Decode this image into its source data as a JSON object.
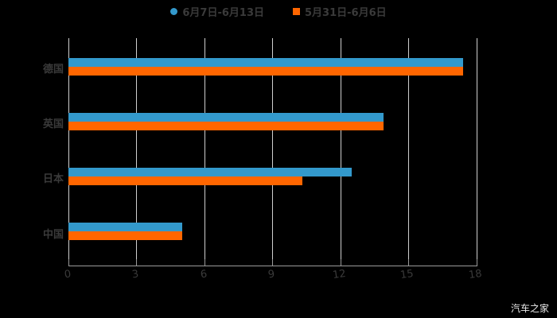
{
  "chart_data": {
    "type": "bar",
    "orientation": "horizontal",
    "title": "",
    "xlabel": "",
    "ylabel": "",
    "categories": [
      "德国",
      "英国",
      "日本",
      "中国"
    ],
    "series": [
      {
        "name": "6月7日-6月13日",
        "color": "#3399cc",
        "values": [
          17.4,
          13.9,
          12.5,
          5.0
        ]
      },
      {
        "name": "5月31日-6月6日",
        "color": "#ff6600",
        "values": [
          17.4,
          13.9,
          10.3,
          5.0
        ]
      }
    ],
    "xlim": [
      0,
      18
    ],
    "x_ticks": [
      "0",
      "3",
      "6",
      "9",
      "12",
      "15",
      "18"
    ],
    "grid": true,
    "legend_position": "top"
  },
  "legend": {
    "items": [
      {
        "label": "6月7日-6月13日",
        "color": "#3399cc"
      },
      {
        "label": "5月31日-6月6日",
        "color": "#ff6600"
      }
    ]
  },
  "watermark": "汽车之家"
}
